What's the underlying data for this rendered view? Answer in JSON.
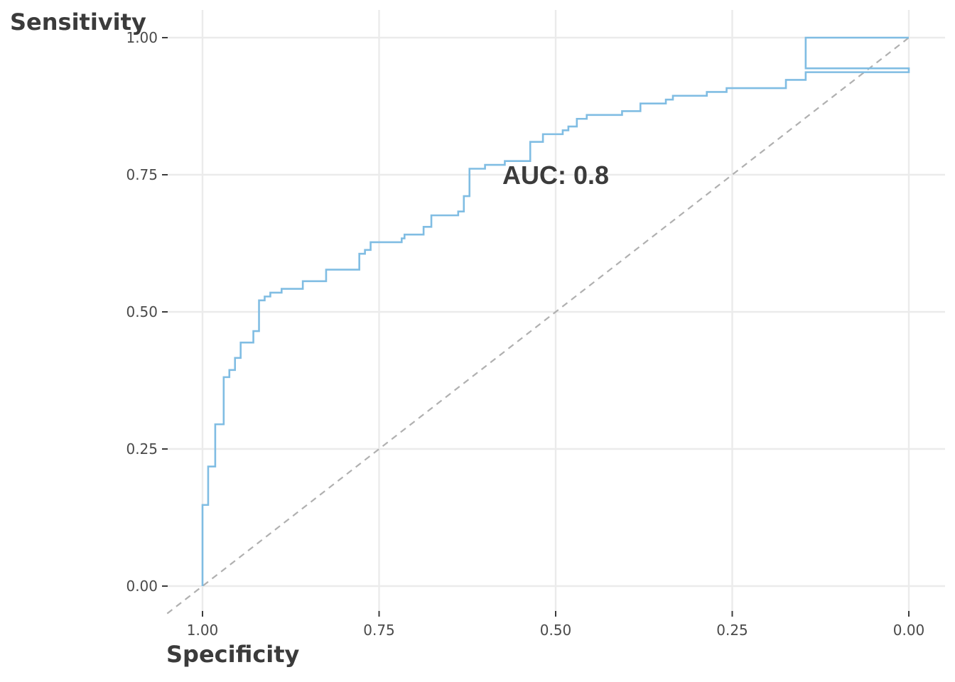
{
  "chart_data": {
    "type": "line",
    "xlabel": "Specificity",
    "ylabel": "Sensitivity",
    "annotation": "AUC: 0.8",
    "x_reversed": true,
    "xlim": [
      1.04,
      -0.1
    ],
    "ylim": [
      -0.09,
      1.1
    ],
    "x_ticks": [
      1.0,
      0.75,
      0.5,
      0.25,
      0.0
    ],
    "x_tick_labels": [
      "1.00",
      "0.75",
      "0.50",
      "0.25",
      "0.00"
    ],
    "y_ticks": [
      0.0,
      0.25,
      0.5,
      0.75,
      1.0
    ],
    "y_tick_labels": [
      "0.00",
      "0.25",
      "0.50",
      "0.75",
      "1.00"
    ],
    "grid": true,
    "colors": {
      "roc": "#80bde3",
      "reference": "#b0b0b0",
      "grid": "#ebebeb",
      "text": "#3b3b3b"
    },
    "reference_line": {
      "name": "chance",
      "x": [
        1.0,
        0.0
      ],
      "y": [
        0.0,
        1.0
      ]
    },
    "series": [
      {
        "step": "hv",
        "specificity": [
          1.0,
          1.0,
          0.992,
          0.982,
          0.97,
          0.962,
          0.954,
          0.946,
          0.928,
          0.92,
          0.912,
          0.904,
          0.888,
          0.858,
          0.825,
          0.778,
          0.77,
          0.762,
          0.718,
          0.714,
          0.687,
          0.676,
          0.638,
          0.63,
          0.622,
          0.6,
          0.572,
          0.536,
          0.518,
          0.49,
          0.482,
          0.47,
          0.456,
          0.406,
          0.38,
          0.344,
          0.334,
          0.286,
          0.258,
          0.174,
          0.146,
          0.0
        ],
        "sensitivity": [
          0.0,
          0.148,
          0.218,
          0.295,
          0.381,
          0.394,
          0.416,
          0.444,
          0.465,
          0.521,
          0.528,
          0.535,
          0.542,
          0.556,
          0.577,
          0.606,
          0.613,
          0.627,
          0.634,
          0.641,
          0.655,
          0.676,
          0.683,
          0.711,
          0.761,
          0.768,
          0.775,
          0.81,
          0.824,
          0.831,
          0.838,
          0.852,
          0.859,
          0.866,
          0.88,
          0.887,
          0.894,
          0.901,
          0.908,
          0.923,
          0.937,
          0.944
        ]
      }
    ]
  }
}
